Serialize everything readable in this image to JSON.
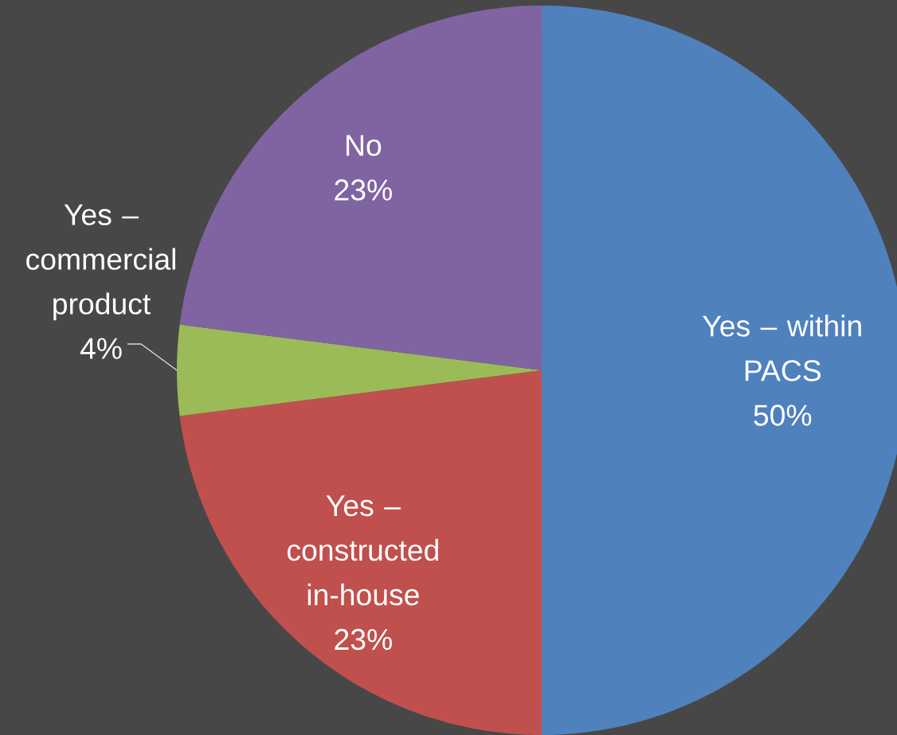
{
  "chart_data": {
    "type": "pie",
    "categories": [
      "Yes – within PACS",
      "Yes – constructed in-house",
      "Yes – commercial product",
      "No"
    ],
    "values": [
      50,
      23,
      4,
      23
    ],
    "colors": [
      "#4f81bd",
      "#c0504d",
      "#9bbb59",
      "#8064a2"
    ],
    "value_labels": [
      "50%",
      "23%",
      "4%",
      "23%"
    ]
  }
}
